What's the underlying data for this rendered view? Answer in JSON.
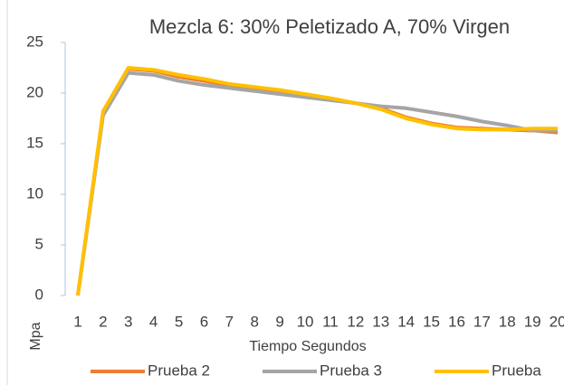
{
  "chart_data": {
    "type": "line",
    "title": "Mezcla 6: 30% Peletizado A, 70% Virgen",
    "y_label": "Mpa",
    "x_label": "Tiempo Segundos",
    "categories": [
      "1",
      "2",
      "3",
      "4",
      "5",
      "6",
      "7",
      "8",
      "9",
      "10",
      "11",
      "12",
      "13",
      "14",
      "15",
      "16",
      "17",
      "18",
      "19",
      "20"
    ],
    "series": [
      {
        "name": "Prueba 2",
        "color": "#ed7d31",
        "values": [
          0,
          18,
          22.4,
          22.2,
          21.6,
          21.2,
          20.8,
          20.5,
          20.2,
          19.8,
          19.4,
          19.0,
          18.5,
          17.6,
          17.0,
          16.6,
          16.5,
          16.4,
          16.3,
          16.1
        ]
      },
      {
        "name": "Prueba 3",
        "color": "#a5a5a5",
        "values": [
          0,
          17.8,
          22.0,
          21.8,
          21.2,
          20.8,
          20.5,
          20.2,
          19.9,
          19.6,
          19.3,
          19.0,
          18.7,
          18.5,
          18.1,
          17.7,
          17.2,
          16.8,
          16.3,
          16.3
        ]
      },
      {
        "name": "Prueba",
        "color": "#ffc000",
        "values": [
          0,
          18.2,
          22.5,
          22.3,
          21.8,
          21.4,
          20.9,
          20.6,
          20.3,
          19.9,
          19.5,
          19.0,
          18.4,
          17.5,
          16.9,
          16.5,
          16.4,
          16.4,
          16.5,
          16.5
        ]
      }
    ],
    "ylim": [
      0,
      25
    ],
    "yticks": [
      0,
      5,
      10,
      15,
      20,
      25
    ],
    "grid": false
  }
}
